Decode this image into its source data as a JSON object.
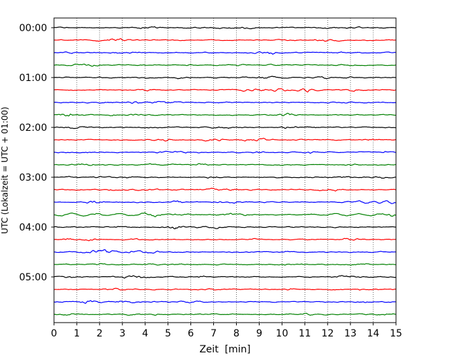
{
  "chart_data": {
    "type": "line",
    "title": "",
    "xlabel": "Zeit  [min]",
    "ylabel": "UTC (Lokalzeit = UTC + 01:00)",
    "xlim": [
      0,
      15
    ],
    "x_ticks": [
      0,
      1,
      2,
      3,
      4,
      5,
      6,
      7,
      8,
      9,
      10,
      11,
      12,
      13,
      14,
      15
    ],
    "y_tick_labels": [
      "00:00",
      "01:00",
      "02:00",
      "03:00",
      "04:00",
      "05:00"
    ],
    "trace_interval_minutes": 15,
    "trace_count": 24,
    "trace_start_times": [
      "00:00",
      "00:15",
      "00:30",
      "00:45",
      "01:00",
      "01:15",
      "01:30",
      "01:45",
      "02:00",
      "02:15",
      "02:30",
      "02:45",
      "03:00",
      "03:15",
      "03:30",
      "03:45",
      "04:00",
      "04:15",
      "04:30",
      "04:45",
      "05:00",
      "05:15",
      "05:30",
      "05:45"
    ],
    "trace_color_cycle": [
      "#000000",
      "#ff0000",
      "#0000ff",
      "#008000"
    ],
    "grid": {
      "vertical_dotted": true,
      "horizontal": false
    },
    "legend": "none",
    "series": []
  }
}
